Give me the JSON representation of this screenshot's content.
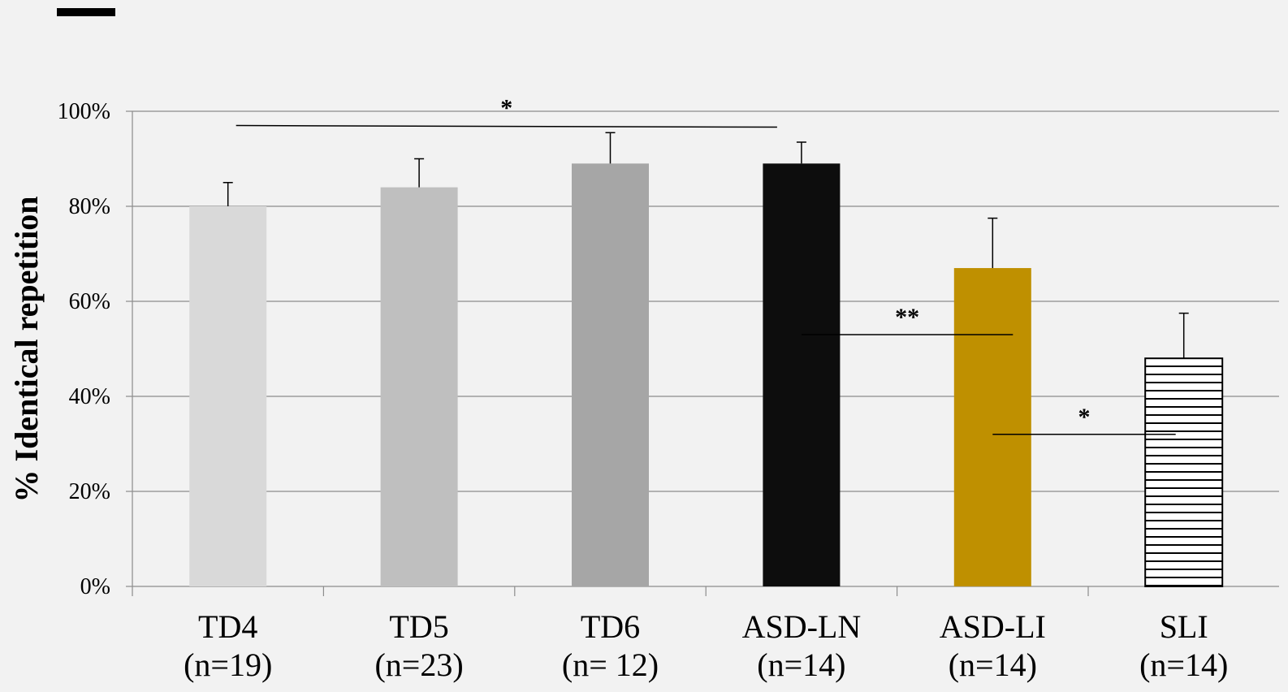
{
  "chart_data": {
    "type": "bar",
    "ylabel": "% Identical repetition",
    "ylim": [
      0,
      100
    ],
    "yticks": [
      "0%",
      "20%",
      "40%",
      "60%",
      "80%",
      "100%"
    ],
    "grid": true,
    "categories": [
      {
        "name": "TD4",
        "n_label": "(n=19)"
      },
      {
        "name": "TD5",
        "n_label": "(n=23)"
      },
      {
        "name": "TD6",
        "n_label": "(n= 12)"
      },
      {
        "name": "ASD-LN",
        "n_label": "(n=14)"
      },
      {
        "name": "ASD-LI",
        "n_label": "(n=14)"
      },
      {
        "name": "SLI",
        "n_label": "(n=14)"
      }
    ],
    "values": [
      80,
      84,
      89,
      89,
      67,
      48
    ],
    "error_upper": [
      85,
      90,
      95.5,
      93.5,
      77.5,
      57.5
    ],
    "bar_colors": [
      "#d9d9d9",
      "#bfbfbf",
      "#a6a6a6",
      "#0d0d0d",
      "#bf9000",
      "striped"
    ],
    "significance": [
      {
        "from": "TD4",
        "to": "ASD-LN",
        "label": "*",
        "y": 97
      },
      {
        "from": "ASD-LN",
        "to": "ASD-LI",
        "label": "**",
        "y": 53
      },
      {
        "from": "ASD-LI",
        "to": "SLI",
        "label": "*",
        "y": 32
      }
    ]
  }
}
